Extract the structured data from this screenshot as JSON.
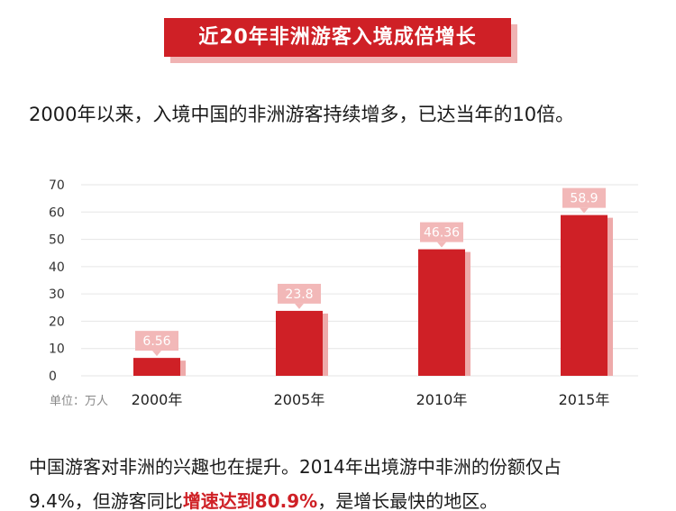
{
  "header": {
    "title": "近20年非洲游客入境成倍增长"
  },
  "intro": {
    "text": "2000年以来，入境中国的非洲游客持续增多，已达当年的10倍。"
  },
  "chart_data": {
    "type": "bar",
    "categories": [
      "2000年",
      "2005年",
      "2010年",
      "2015年"
    ],
    "values": [
      6.56,
      23.8,
      46.36,
      58.9
    ],
    "value_labels": [
      "6.56",
      "23.8",
      "46.36",
      "58.9"
    ],
    "yticks": [
      "0",
      "10",
      "20",
      "30",
      "40",
      "50",
      "60",
      "70"
    ],
    "ylim": [
      0,
      70
    ],
    "unit_label": "单位：万人",
    "grid": true,
    "colors": {
      "bar": "#cf2026",
      "bar_shadow": "#eeaaaa",
      "label_bg": "#f2b8b8"
    }
  },
  "footer": {
    "line1": "中国游客对非洲的兴趣也在提升。2014年出境游中非洲的份额仅占",
    "line2_pre": "9.4%，但游客同比",
    "line2_highlight": "增速达到80.9%",
    "line2_post": "，是增长最快的地区。"
  }
}
